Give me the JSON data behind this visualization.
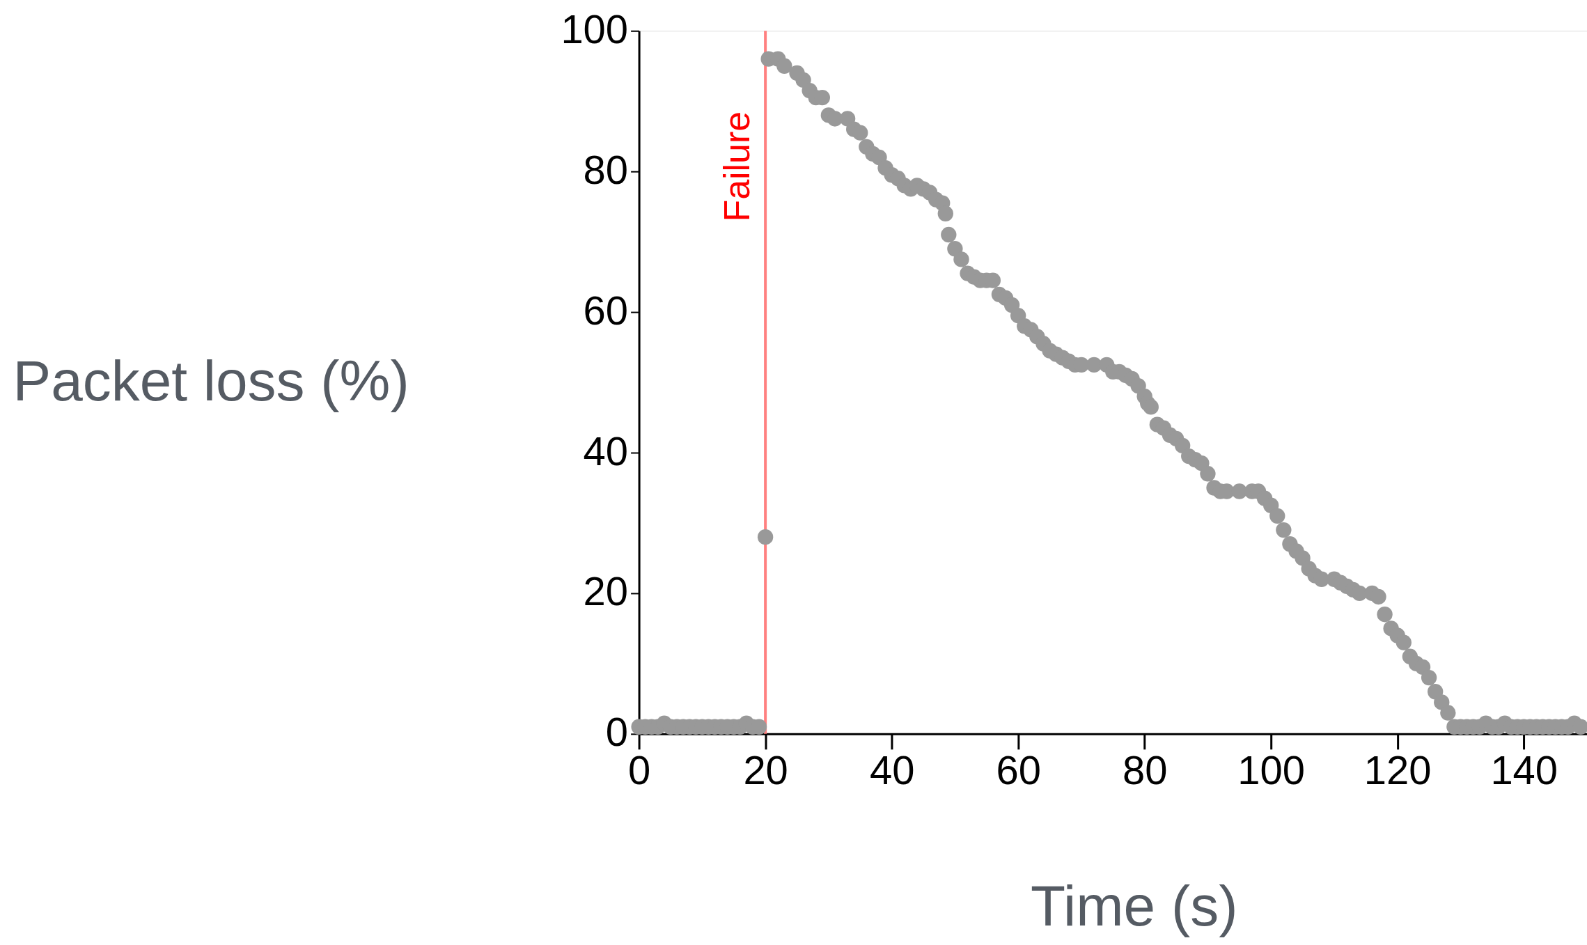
{
  "chart_data": {
    "type": "scatter",
    "xlabel": "Time (s)",
    "ylabel": "Packet loss (%)",
    "xlim": [
      0,
      150
    ],
    "ylim": [
      0,
      100
    ],
    "xticks": [
      0,
      20,
      40,
      60,
      80,
      100,
      120,
      140
    ],
    "yticks": [
      0,
      20,
      40,
      60,
      80,
      100
    ],
    "grid": false,
    "marker": "circle",
    "ref_lines": [
      {
        "axis": "x",
        "value": 20,
        "label": "Failure",
        "color": "#ff8080"
      }
    ],
    "series": [
      {
        "color": "#999999",
        "x": [
          0,
          1,
          2,
          3,
          4,
          5,
          6,
          7,
          8,
          9,
          10,
          11,
          12,
          13,
          14,
          15,
          16,
          17,
          18,
          19,
          20,
          20.5,
          22,
          23,
          25,
          26,
          27,
          28,
          29,
          30,
          31,
          33,
          34,
          35,
          36,
          37,
          38,
          39,
          40,
          41,
          42,
          43,
          44,
          45,
          46,
          47,
          48,
          48.5,
          49,
          50,
          51,
          52,
          53,
          54,
          55,
          56,
          57,
          58,
          59,
          60,
          61,
          62,
          63,
          64,
          65,
          66,
          67,
          68,
          69,
          70,
          72,
          74,
          75,
          76,
          77,
          78,
          79,
          80,
          80.5,
          81,
          82,
          83,
          84,
          85,
          86,
          87,
          88,
          89,
          90,
          91,
          92,
          93,
          95,
          97,
          98,
          99,
          100,
          101,
          102,
          103,
          104,
          105,
          106,
          107,
          108,
          110,
          111,
          112,
          113,
          114,
          116,
          117,
          118,
          119,
          120,
          121,
          122,
          123,
          124,
          125,
          126,
          127,
          128,
          129,
          130,
          131,
          132,
          133,
          134,
          135,
          136,
          137,
          138,
          139,
          140,
          141,
          142,
          143,
          144,
          145,
          146,
          147,
          148,
          149
        ],
        "values": [
          1,
          1,
          1,
          1,
          1.5,
          1,
          1,
          1,
          1,
          1,
          1,
          1,
          1,
          1,
          1,
          1,
          1,
          1.5,
          1,
          1,
          28,
          96,
          96,
          95,
          94,
          93,
          91.5,
          90.5,
          90.5,
          88,
          87.5,
          87.5,
          86,
          85.5,
          83.5,
          82.5,
          82,
          80.5,
          79.5,
          79,
          78,
          77.5,
          78,
          77.5,
          77,
          76,
          75.5,
          74,
          71,
          69,
          67.5,
          65.5,
          65,
          64.5,
          64.5,
          64.5,
          62.5,
          62,
          61,
          59.5,
          58,
          57.5,
          56.5,
          55.5,
          54.5,
          54,
          53.5,
          53,
          52.5,
          52.5,
          52.5,
          52.5,
          51.5,
          51.5,
          51,
          50.5,
          49.5,
          48,
          47,
          46.5,
          44,
          43.5,
          42.5,
          42,
          41,
          39.5,
          39,
          38.5,
          37,
          35,
          34.5,
          34.5,
          34.5,
          34.5,
          34.5,
          33.5,
          32.5,
          31,
          29,
          27,
          26,
          25,
          23.5,
          22.5,
          22,
          22,
          21.5,
          21,
          20.5,
          20,
          20,
          19.5,
          17,
          15,
          14,
          13,
          11,
          10,
          9.5,
          8,
          6,
          4.5,
          3,
          1,
          1,
          1,
          1,
          1,
          1.5,
          1,
          1,
          1.5,
          1,
          1,
          1,
          1,
          1,
          1,
          1,
          1,
          1,
          1,
          1.5,
          1
        ]
      }
    ]
  }
}
